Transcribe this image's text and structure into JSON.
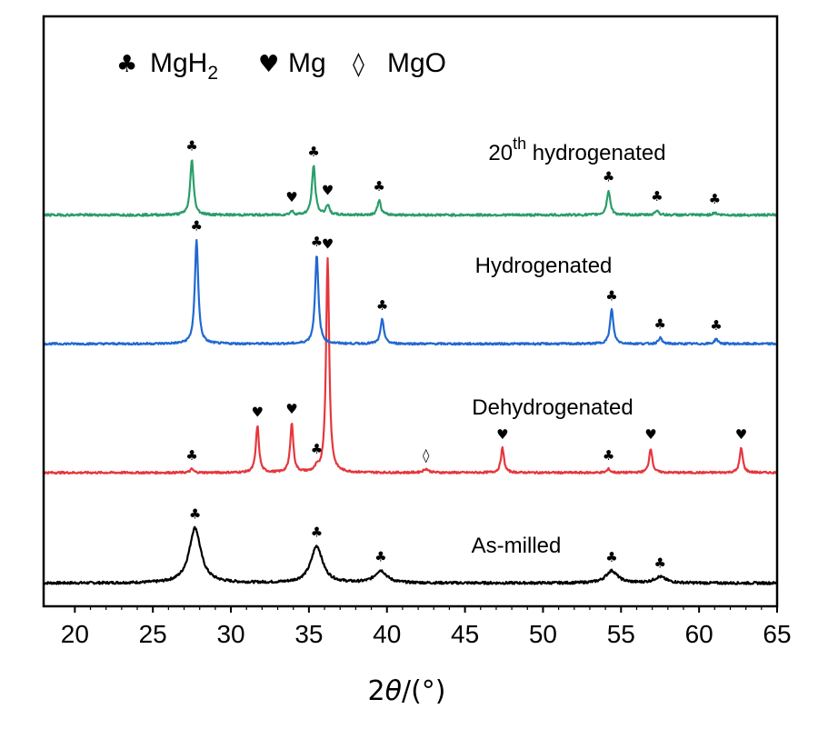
{
  "chart_data": {
    "type": "line",
    "title": "",
    "xlabel": "2θ/(°)",
    "xlabel_parts": {
      "theta_prefix": "2",
      "theta": "θ",
      "unit": "/(°)"
    },
    "ylabel": "",
    "xlim": [
      18,
      65
    ],
    "x_ticks": [
      20,
      25,
      30,
      35,
      40,
      45,
      50,
      55,
      60,
      65
    ],
    "y_ticks_shown": false,
    "grid": false,
    "legend": {
      "placement": "top-left",
      "entries": [
        {
          "symbol": "♣",
          "label": "MgH",
          "subscript": "2",
          "phase": "MgH2"
        },
        {
          "symbol": "♥",
          "label": "Mg",
          "subscript": "",
          "phase": "Mg"
        },
        {
          "symbol": "◊",
          "label": "MgO",
          "subscript": "",
          "phase": "MgO"
        }
      ]
    },
    "series": [
      {
        "name": "As-milled",
        "color": "#000000",
        "offset": 0.1,
        "noise": 0.01,
        "peaks": [
          {
            "x": 27.7,
            "height": 0.45,
            "width": 0.45,
            "phase": "MgH2",
            "symbol": "♣"
          },
          {
            "x": 35.5,
            "height": 0.3,
            "width": 0.45,
            "phase": "MgH2",
            "symbol": "♣"
          },
          {
            "x": 39.6,
            "height": 0.1,
            "width": 0.45,
            "phase": "MgH2",
            "symbol": "♣"
          },
          {
            "x": 54.4,
            "height": 0.1,
            "width": 0.45,
            "phase": "MgH2",
            "symbol": "♣"
          },
          {
            "x": 57.5,
            "height": 0.05,
            "width": 0.45,
            "phase": "MgH2",
            "symbol": "♣"
          }
        ]
      },
      {
        "name": "Dehydrogenated",
        "color": "#e5373c",
        "offset": 1.0,
        "noise": 0.008,
        "peaks": [
          {
            "x": 27.5,
            "height": 0.03,
            "width": 0.12,
            "phase": "MgH2",
            "symbol": "♣"
          },
          {
            "x": 31.7,
            "height": 0.38,
            "width": 0.12,
            "phase": "Mg",
            "symbol": "♥"
          },
          {
            "x": 33.9,
            "height": 0.4,
            "width": 0.12,
            "phase": "Mg",
            "symbol": "♥"
          },
          {
            "x": 35.5,
            "height": 0.03,
            "width": 0.12,
            "phase": "MgH2",
            "symbol": "♣"
          },
          {
            "x": 36.2,
            "height": 1.75,
            "width": 0.12,
            "phase": "Mg",
            "symbol": "♥"
          },
          {
            "x": 42.5,
            "height": 0.03,
            "width": 0.2,
            "phase": "MgO",
            "symbol": "◊"
          },
          {
            "x": 47.4,
            "height": 0.2,
            "width": 0.12,
            "phase": "Mg",
            "symbol": "♥"
          },
          {
            "x": 54.2,
            "height": 0.03,
            "width": 0.12,
            "phase": "MgH2",
            "symbol": "♣"
          },
          {
            "x": 56.9,
            "height": 0.2,
            "width": 0.12,
            "phase": "Mg",
            "symbol": "♥"
          },
          {
            "x": 62.7,
            "height": 0.2,
            "width": 0.12,
            "phase": "Mg",
            "symbol": "♥"
          }
        ]
      },
      {
        "name": "Hydrogenated",
        "color": "#2168d1",
        "offset": 2.05,
        "noise": 0.008,
        "peaks": [
          {
            "x": 27.8,
            "height": 0.85,
            "width": 0.13,
            "phase": "MgH2",
            "symbol": "♣"
          },
          {
            "x": 35.5,
            "height": 0.72,
            "width": 0.13,
            "phase": "MgH2",
            "symbol": "♣"
          },
          {
            "x": 39.7,
            "height": 0.2,
            "width": 0.13,
            "phase": "MgH2",
            "symbol": "♣"
          },
          {
            "x": 54.4,
            "height": 0.28,
            "width": 0.13,
            "phase": "MgH2",
            "symbol": "♣"
          },
          {
            "x": 57.5,
            "height": 0.05,
            "width": 0.13,
            "phase": "MgH2",
            "symbol": "♣"
          },
          {
            "x": 61.1,
            "height": 0.04,
            "width": 0.13,
            "phase": "MgH2",
            "symbol": "♣"
          }
        ]
      },
      {
        "name": "20th hydrogenated",
        "label_parts": {
          "number": "20",
          "superscript": "th",
          "rest": " hydrogenated"
        },
        "color": "#2a9d6a",
        "offset": 3.1,
        "noise": 0.009,
        "peaks": [
          {
            "x": 27.5,
            "height": 0.45,
            "width": 0.13,
            "phase": "MgH2",
            "symbol": "♣"
          },
          {
            "x": 33.9,
            "height": 0.03,
            "width": 0.13,
            "phase": "Mg",
            "symbol": "♥"
          },
          {
            "x": 35.3,
            "height": 0.4,
            "width": 0.13,
            "phase": "MgH2",
            "symbol": "♣"
          },
          {
            "x": 36.2,
            "height": 0.08,
            "width": 0.13,
            "phase": "Mg",
            "symbol": "♥"
          },
          {
            "x": 39.5,
            "height": 0.12,
            "width": 0.13,
            "phase": "MgH2",
            "symbol": "♣"
          },
          {
            "x": 54.2,
            "height": 0.2,
            "width": 0.13,
            "phase": "MgH2",
            "symbol": "♣"
          },
          {
            "x": 57.3,
            "height": 0.04,
            "width": 0.13,
            "phase": "MgH2",
            "symbol": "♣"
          },
          {
            "x": 61.0,
            "height": 0.02,
            "width": 0.13,
            "phase": "MgH2",
            "symbol": "♣"
          }
        ]
      }
    ]
  }
}
